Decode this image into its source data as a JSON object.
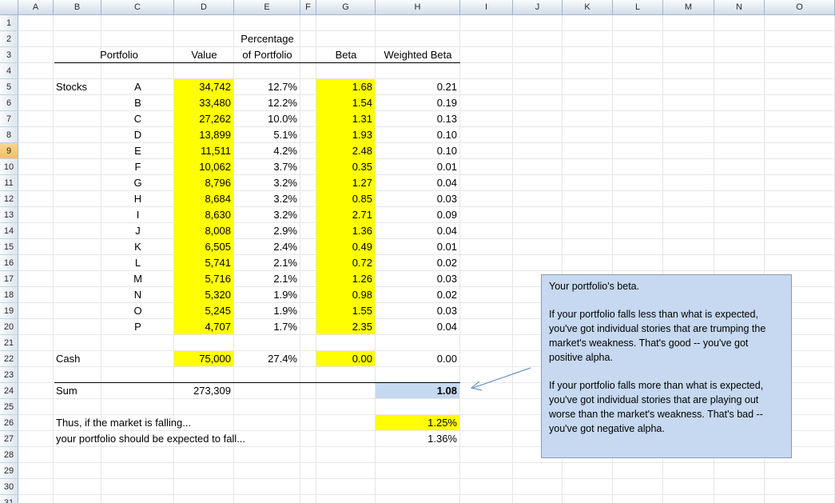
{
  "columns": [
    "A",
    "B",
    "C",
    "D",
    "E",
    "F",
    "G",
    "H",
    "I",
    "J",
    "K",
    "L",
    "M",
    "N",
    "O"
  ],
  "rows": [
    "1",
    "2",
    "3",
    "4",
    "5",
    "6",
    "7",
    "8",
    "9",
    "10",
    "11",
    "12",
    "13",
    "14",
    "15",
    "16",
    "17",
    "18",
    "19",
    "20",
    "21",
    "22",
    "23",
    "24",
    "25",
    "26",
    "27",
    "28",
    "29",
    "30",
    "31"
  ],
  "headers": {
    "portfolio": "Portfolio",
    "value": "Value",
    "pct_line1": "Percentage",
    "pct_line2": "of Portfolio",
    "beta": "Beta",
    "weighted_beta": "Weighted Beta"
  },
  "stocks_label": "Stocks",
  "stocks": [
    {
      "name": "A",
      "value": "34,742",
      "pct": "12.7%",
      "beta": "1.68",
      "wbeta": "0.21"
    },
    {
      "name": "B",
      "value": "33,480",
      "pct": "12.2%",
      "beta": "1.54",
      "wbeta": "0.19"
    },
    {
      "name": "C",
      "value": "27,262",
      "pct": "10.0%",
      "beta": "1.31",
      "wbeta": "0.13"
    },
    {
      "name": "D",
      "value": "13,899",
      "pct": "5.1%",
      "beta": "1.93",
      "wbeta": "0.10"
    },
    {
      "name": "E",
      "value": "11,511",
      "pct": "4.2%",
      "beta": "2.48",
      "wbeta": "0.10"
    },
    {
      "name": "F",
      "value": "10,062",
      "pct": "3.7%",
      "beta": "0.35",
      "wbeta": "0.01"
    },
    {
      "name": "G",
      "value": "8,796",
      "pct": "3.2%",
      "beta": "1.27",
      "wbeta": "0.04"
    },
    {
      "name": "H",
      "value": "8,684",
      "pct": "3.2%",
      "beta": "0.85",
      "wbeta": "0.03"
    },
    {
      "name": "I",
      "value": "8,630",
      "pct": "3.2%",
      "beta": "2.71",
      "wbeta": "0.09"
    },
    {
      "name": "J",
      "value": "8,008",
      "pct": "2.9%",
      "beta": "1.36",
      "wbeta": "0.04"
    },
    {
      "name": "K",
      "value": "6,505",
      "pct": "2.4%",
      "beta": "0.49",
      "wbeta": "0.01"
    },
    {
      "name": "L",
      "value": "5,741",
      "pct": "2.1%",
      "beta": "0.72",
      "wbeta": "0.02"
    },
    {
      "name": "M",
      "value": "5,716",
      "pct": "2.1%",
      "beta": "1.26",
      "wbeta": "0.03"
    },
    {
      "name": "N",
      "value": "5,320",
      "pct": "1.9%",
      "beta": "0.98",
      "wbeta": "0.02"
    },
    {
      "name": "O",
      "value": "5,245",
      "pct": "1.9%",
      "beta": "1.55",
      "wbeta": "0.03"
    },
    {
      "name": "P",
      "value": "4,707",
      "pct": "1.7%",
      "beta": "2.35",
      "wbeta": "0.04"
    }
  ],
  "cash": {
    "label": "Cash",
    "value": "75,000",
    "pct": "27.4%",
    "beta": "0.00",
    "wbeta": "0.00"
  },
  "sum": {
    "label": "Sum",
    "value": "273,309",
    "wbeta": "1.08"
  },
  "scenario": {
    "market_label": "Thus, if the market is falling...",
    "market_value": "1.25%",
    "portfolio_label": "your portfolio should be expected to fall...",
    "portfolio_value": "1.36%"
  },
  "selected_row": "9",
  "note": {
    "p1": "Your portfolio's beta.",
    "p2": "If your portfolio falls less than what is expected, you've got individual stories that are trumping the market's weakness. That's good -- you've got positive alpha.",
    "p3": "If your portfolio falls more than what is expected, you've got individual stories that are playing out worse than the market's weakness. That's bad -- you've got negative alpha."
  },
  "colors": {
    "highlight": "#ffff00",
    "sum_fill": "#c5d9f1",
    "note_fill": "#c6d9f0",
    "arrow": "#4f81bd"
  }
}
